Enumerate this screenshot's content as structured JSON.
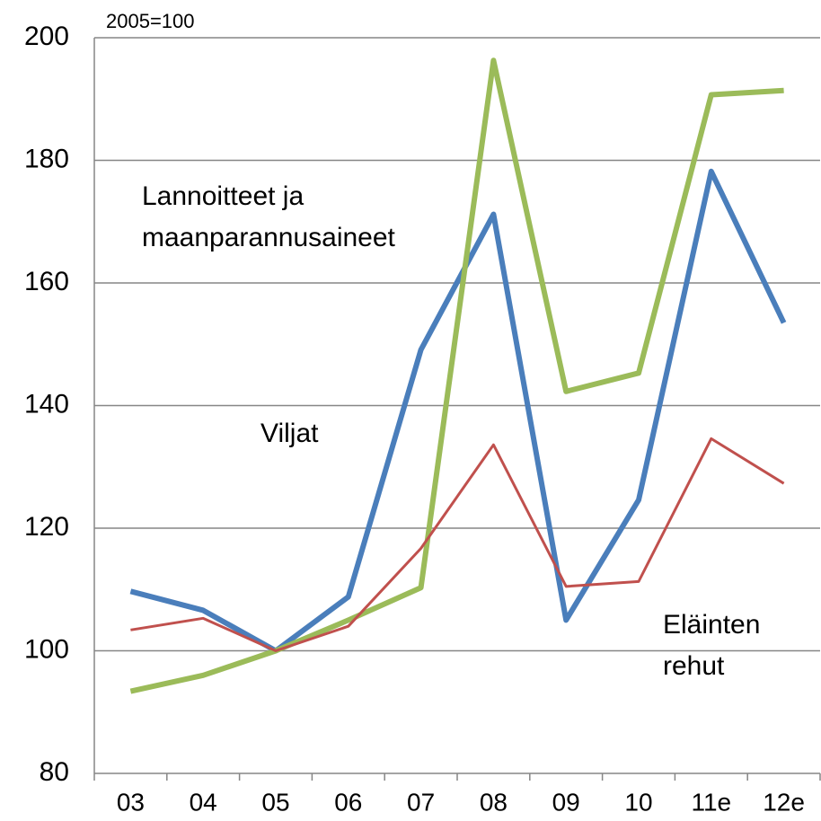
{
  "chart_data": {
    "type": "line",
    "unit_label": "2005=100",
    "categories": [
      "03",
      "04",
      "05",
      "06",
      "07",
      "08",
      "09",
      "10",
      "11e",
      "12e"
    ],
    "series": [
      {
        "name": "Viljat",
        "color": "#4a7ebb",
        "values": [
          109.7,
          106.6,
          100,
          108.8,
          149.1,
          171.2,
          105,
          124.6,
          178.2,
          153.5
        ]
      },
      {
        "name": "Lannoitteet ja maanparannusaineet",
        "color": "#9bbb59",
        "values": [
          93.4,
          96,
          100,
          105,
          110.3,
          196.3,
          142.3,
          145.3,
          190.7,
          191.4
        ]
      },
      {
        "name": "Eläinten rehut",
        "color": "#c0504d",
        "values": [
          103.4,
          105.3,
          100,
          104,
          116.7,
          133.6,
          110.5,
          111.3,
          134.6,
          127.3
        ]
      }
    ],
    "ylim": [
      80,
      200
    ],
    "yticks": [
      80,
      100,
      120,
      140,
      160,
      180,
      200
    ],
    "grid": true
  }
}
